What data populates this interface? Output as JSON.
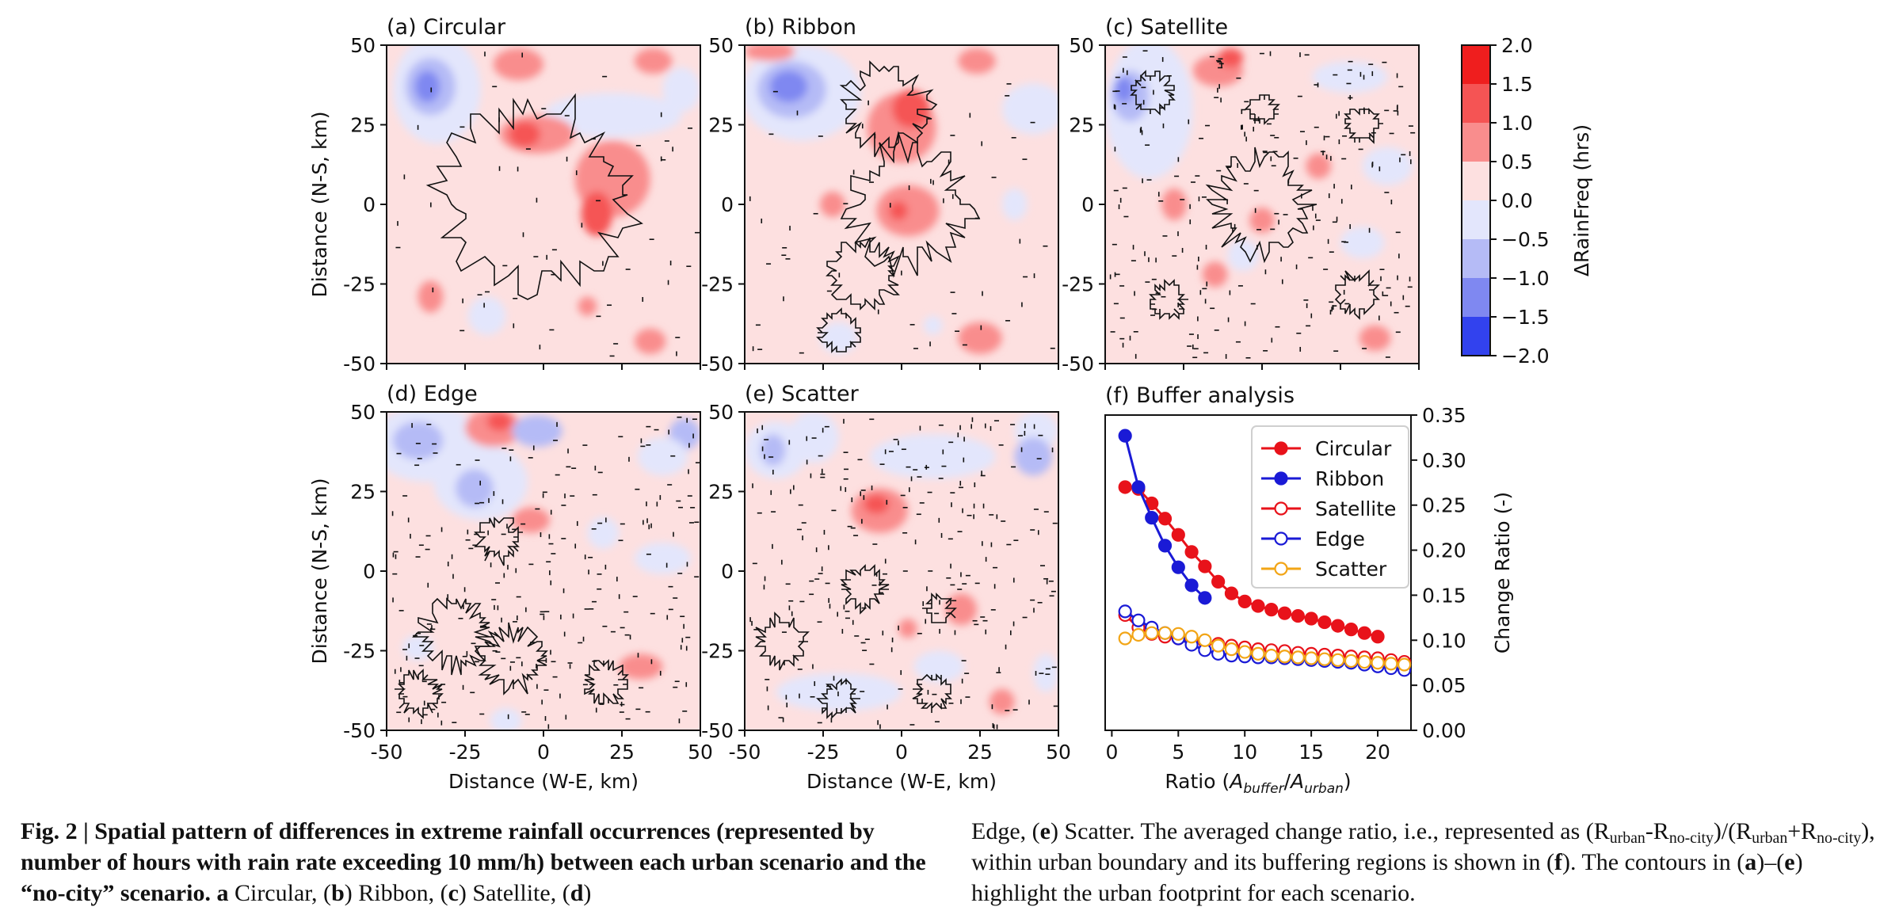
{
  "colorbar": {
    "label": "ΔRainFreq (hrs)",
    "ticks": [
      "2.0",
      "1.5",
      "1.0",
      "0.5",
      "0.0",
      "−0.5",
      "−1.0",
      "−1.5",
      "−2.0"
    ],
    "colors": [
      "#ef1e1e",
      "#f55454",
      "#f98d8d",
      "#fde0e0",
      "#e3e6fc",
      "#b5bbf6",
      "#7f88f1",
      "#3242ee"
    ]
  },
  "maps": {
    "ylabel": "Distance (N-S, km)",
    "xlabel": "Distance (W-E, km)",
    "ticks": [
      "-50",
      "-25",
      "0",
      "25",
      "50"
    ],
    "panels": [
      {
        "title": "(a) Circular"
      },
      {
        "title": "(b) Ribbon"
      },
      {
        "title": "(c) Satellite"
      },
      {
        "title": "(d) Edge"
      },
      {
        "title": "(e) Scatter"
      }
    ]
  },
  "chart_data": {
    "type": "line",
    "title": "(f) Buffer analysis",
    "xlabel": "Ratio (Abuffer/Aurban)",
    "xlabel_parts": {
      "pre": "Ratio (",
      "A1": "A",
      "s1": "buffer",
      "slash": "/",
      "A2": "A",
      "s2": "urban",
      "post": ")"
    },
    "ylabel": "Change Ratio (-)",
    "xticks": [
      "0",
      "5",
      "10",
      "15",
      "20"
    ],
    "yticks": [
      "0.00",
      "0.05",
      "0.10",
      "0.15",
      "0.20",
      "0.25",
      "0.30",
      "0.35"
    ],
    "xlim": [
      -0.5,
      22.5
    ],
    "ylim": [
      0.0,
      0.35
    ],
    "legend_position": "top-right",
    "series": [
      {
        "name": "Circular",
        "color": "#e8121a",
        "filled": true,
        "x": [
          1,
          2,
          3,
          4,
          5,
          6,
          7,
          8,
          9,
          10,
          11,
          12,
          13,
          14,
          15,
          16,
          17,
          18,
          19,
          20
        ],
        "y": [
          0.27,
          0.268,
          0.252,
          0.235,
          0.217,
          0.198,
          0.182,
          0.165,
          0.152,
          0.143,
          0.138,
          0.134,
          0.13,
          0.127,
          0.124,
          0.12,
          0.116,
          0.112,
          0.108,
          0.104
        ]
      },
      {
        "name": "Ribbon",
        "color": "#1a1ad6",
        "filled": true,
        "x": [
          1,
          2,
          3,
          4,
          5,
          6,
          7
        ],
        "y": [
          0.327,
          0.27,
          0.236,
          0.205,
          0.181,
          0.161,
          0.147
        ]
      },
      {
        "name": "Satellite",
        "color": "#e8121a",
        "filled": false,
        "x": [
          1,
          2,
          3,
          4,
          5,
          6,
          7,
          8,
          9,
          10,
          11,
          12,
          13,
          14,
          15,
          16,
          17,
          18,
          19,
          20,
          21,
          22
        ],
        "y": [
          0.128,
          0.114,
          0.107,
          0.104,
          0.102,
          0.1,
          0.098,
          0.096,
          0.094,
          0.092,
          0.09,
          0.089,
          0.088,
          0.086,
          0.085,
          0.084,
          0.083,
          0.082,
          0.081,
          0.08,
          0.078,
          0.076
        ]
      },
      {
        "name": "Edge",
        "color": "#1a1ad6",
        "filled": false,
        "x": [
          1,
          2,
          3,
          4,
          5,
          6,
          7,
          8,
          9,
          10,
          11,
          12,
          13,
          14,
          15,
          16,
          17,
          18,
          19,
          20,
          21,
          22
        ],
        "y": [
          0.132,
          0.122,
          0.114,
          0.108,
          0.102,
          0.095,
          0.089,
          0.085,
          0.083,
          0.082,
          0.081,
          0.081,
          0.08,
          0.079,
          0.078,
          0.077,
          0.076,
          0.075,
          0.073,
          0.071,
          0.069,
          0.067
        ]
      },
      {
        "name": "Scatter",
        "color": "#f2a516",
        "filled": false,
        "x": [
          1,
          2,
          3,
          4,
          5,
          6,
          7,
          8,
          9,
          10,
          11,
          12,
          13,
          14,
          15,
          16,
          17,
          18,
          19,
          20,
          21,
          22
        ],
        "y": [
          0.102,
          0.106,
          0.108,
          0.108,
          0.107,
          0.104,
          0.1,
          0.094,
          0.09,
          0.087,
          0.085,
          0.083,
          0.082,
          0.081,
          0.08,
          0.079,
          0.078,
          0.077,
          0.076,
          0.075,
          0.074,
          0.073
        ]
      }
    ]
  },
  "caption": {
    "left_bold": "Fig. 2 | Spatial pattern of differences in extreme rainfall occurrences (represented by number of hours with rain rate exceeding 10 mm/h) between each urban scenario and the “no-city” scenario.",
    "a": "a",
    "a_txt": " Circular, (",
    "b": "b",
    "b_txt": ") Ribbon, (",
    "c": "c",
    "c_txt": ") Satellite, (",
    "d": "d",
    "d_txt": ")",
    "r_lead": "Edge, (",
    "e": "e",
    "e_txt": ") Scatter. The averaged change ratio, i.e., represented as (R",
    "sub_urban": "urban",
    "dash": "-R",
    "sub_nocity": "no-city",
    "mid1": ")/(R",
    "sub_urban2": "urban",
    "plus": "+R",
    "sub_nocity2": "no-city",
    "mid2": "), within urban boundary and its buffering regions is shown in (",
    "f": "f",
    "f_txt": "). The contours in (",
    "a2": "a",
    "range": ")–(",
    "e2": "e",
    "end_txt": ") highlight the urban footprint for each scenario."
  }
}
